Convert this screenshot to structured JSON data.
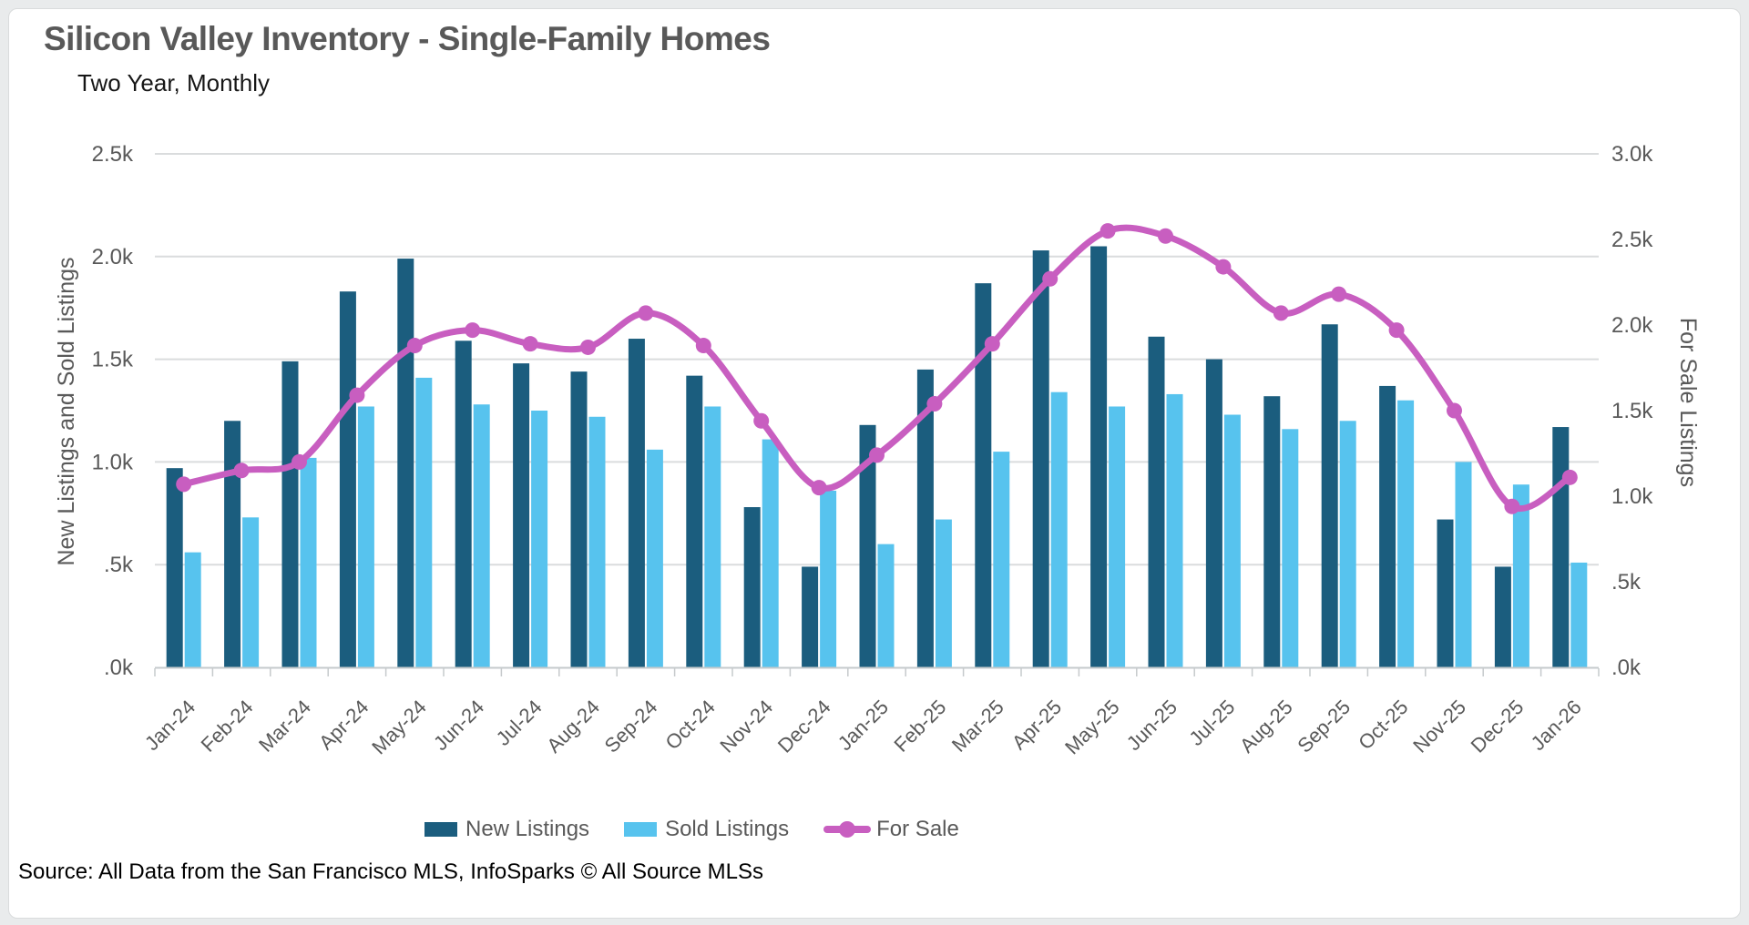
{
  "header": {
    "title": "Silicon Valley Inventory - Single-Family Homes",
    "subtitle": "Two Year, Monthly"
  },
  "source": "Source: All Data from the San Francisco MLS, InfoSparks © All Source MLSs",
  "colors": {
    "new_listings": "#1b5d7e",
    "sold_listings": "#57c3ee",
    "for_sale": "#c85ec0",
    "gridline": "#dadcdd",
    "axis_line": "#c6cacc",
    "tick_text": "#595959"
  },
  "legend": {
    "items": [
      {
        "label": "New Listings",
        "type": "bar",
        "color": "#1b5d7e"
      },
      {
        "label": "Sold Listings",
        "type": "bar",
        "color": "#57c3ee"
      },
      {
        "label": "For Sale",
        "type": "line",
        "color": "#c85ec0"
      }
    ]
  },
  "chart_data": {
    "type": "bar",
    "subtype": "combo-bar-line",
    "grid": "horizontal-only",
    "categories": [
      "Jan-24",
      "Feb-24",
      "Mar-24",
      "Apr-24",
      "May-24",
      "Jun-24",
      "Jul-24",
      "Aug-24",
      "Sep-24",
      "Oct-24",
      "Nov-24",
      "Dec-24",
      "Jan-25",
      "Feb-25",
      "Mar-25",
      "Apr-25",
      "May-25",
      "Jun-25",
      "Jul-25",
      "Aug-25",
      "Sep-25",
      "Oct-25",
      "Nov-25",
      "Dec-25",
      "Jan-26"
    ],
    "series": [
      {
        "name": "New Listings",
        "type": "bar",
        "axis": "left",
        "color": "#1b5d7e",
        "values": [
          970,
          1200,
          1490,
          1830,
          1990,
          1590,
          1480,
          1440,
          1600,
          1420,
          780,
          490,
          1180,
          1450,
          1870,
          2030,
          2050,
          1610,
          1500,
          1320,
          1670,
          1370,
          720,
          490,
          1170
        ]
      },
      {
        "name": "Sold Listings",
        "type": "bar",
        "axis": "left",
        "color": "#57c3ee",
        "values": [
          560,
          730,
          1020,
          1270,
          1410,
          1280,
          1250,
          1220,
          1060,
          1270,
          1110,
          860,
          600,
          720,
          1050,
          1340,
          1270,
          1330,
          1230,
          1160,
          1200,
          1300,
          1000,
          890,
          510
        ]
      },
      {
        "name": "For Sale",
        "type": "line",
        "axis": "right",
        "color": "#c85ec0",
        "values": [
          1070,
          1150,
          1200,
          1590,
          1880,
          1970,
          1890,
          1870,
          2070,
          1880,
          1440,
          1050,
          1240,
          1540,
          1890,
          2270,
          2550,
          2520,
          2340,
          2070,
          2180,
          1970,
          1500,
          940,
          1110
        ]
      }
    ],
    "left_axis": {
      "label": "New Listings and Sold Listings",
      "max": 2500,
      "ticks": [
        {
          "label": "2.5k",
          "value": 2500
        },
        {
          "label": "2.0k",
          "value": 2000
        },
        {
          "label": "1.5k",
          "value": 1500
        },
        {
          "label": "1.0k",
          "value": 1000
        },
        {
          "label": ".5k",
          "value": 500
        },
        {
          "label": ".0k",
          "value": 0
        }
      ]
    },
    "right_axis": {
      "label": "For Sale Listings",
      "max": 3000,
      "ticks": [
        {
          "label": "3.0k",
          "value": 3000
        },
        {
          "label": "2.5k",
          "value": 2500
        },
        {
          "label": "2.0k",
          "value": 2000
        },
        {
          "label": "1.5k",
          "value": 1500
        },
        {
          "label": "1.0k",
          "value": 1000
        },
        {
          "label": ".5k",
          "value": 500
        },
        {
          "label": ".0k",
          "value": 0
        }
      ]
    },
    "legend_position": "bottom"
  }
}
